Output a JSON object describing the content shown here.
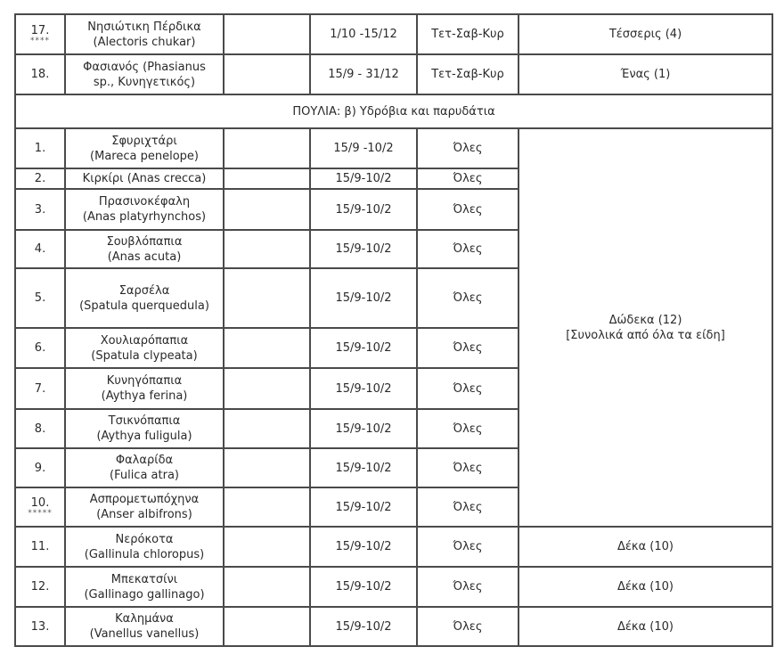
{
  "sections": {
    "top_rows": [
      {
        "num": "17.",
        "mark": "****",
        "name": "Νησιώτικη Πέρδικα",
        "latin": "(Alectoris chukar)",
        "period": "1/10 -15/12",
        "days": "Τετ-Σαβ-Κυρ",
        "quota": "Τέσσερις (4)"
      },
      {
        "num": "18.",
        "mark": "",
        "name": "Φασιανός (Phasianus",
        "latin": "sp., Κυνηγετικός)",
        "period": "15/9 - 31/12",
        "days": "Τετ-Σαβ-Κυρ",
        "quota": "Ένας (1)"
      }
    ],
    "waterfowl_header": "ΠΟΥΛΙΑ: β) Υδρόβια και παρυδάτια",
    "waterfowl_rows": [
      {
        "num": "1.",
        "mark": "",
        "name": "Σφυριχτάρι",
        "latin": "(Mareca penelope)",
        "period": "15/9 -10/2",
        "days": "Όλες"
      },
      {
        "num": "2.",
        "mark": "",
        "name": "Κιρκίρι (Anas crecca)",
        "latin": "",
        "period": "15/9-10/2",
        "days": "Όλες"
      },
      {
        "num": "3.",
        "mark": "",
        "name": "Πρασινοκέφαλη",
        "latin": "(Anas platyrhynchos)",
        "period": "15/9-10/2",
        "days": "Όλες"
      },
      {
        "num": "4.",
        "mark": "",
        "name": "Σουβλόπαπια",
        "latin": "(Anas acuta)",
        "period": "15/9-10/2",
        "days": "Όλες"
      },
      {
        "num": "5.",
        "mark": "",
        "name": "Σαρσέλα",
        "latin": "(Spatula querquedula)",
        "period": "15/9-10/2",
        "days": "Όλες"
      },
      {
        "num": "6.",
        "mark": "",
        "name": "Χουλιαρόπαπια",
        "latin": "(Spatula clypeata)",
        "period": "15/9-10/2",
        "days": "Όλες"
      },
      {
        "num": "7.",
        "mark": "",
        "name": "Κυνηγόπαπια",
        "latin": "(Aythya ferina)",
        "period": "15/9-10/2",
        "days": "Όλες"
      },
      {
        "num": "8.",
        "mark": "",
        "name": "Τσικνόπαπια",
        "latin": "(Aythya fuligula)",
        "period": "15/9-10/2",
        "days": "Όλες"
      },
      {
        "num": "9.",
        "mark": "",
        "name": "Φαλαρίδα",
        "latin": "(Fulica atra)",
        "period": "15/9-10/2",
        "days": "Όλες"
      },
      {
        "num": "10.",
        "mark": "*****",
        "name": "Ασπρομετωπόχηνα",
        "latin": "(Anser albifrons)",
        "period": "15/9-10/2",
        "days": "Όλες"
      },
      {
        "num": "11.",
        "mark": "",
        "name": "Νερόκοτα",
        "latin": "(Gallinula chloropus)",
        "period": "15/9-10/2",
        "days": "Όλες",
        "quota": "Δέκα (10)"
      },
      {
        "num": "12.",
        "mark": "",
        "name": "Μπεκατσίνι",
        "latin": "(Gallinago gallinago)",
        "period": "15/9-10/2",
        "days": "Όλες",
        "quota": "Δέκα (10)"
      },
      {
        "num": "13.",
        "mark": "",
        "name": "Καλημάνα",
        "latin": "(Vanellus vanellus)",
        "period": "15/9-10/2",
        "days": "Όλες",
        "quota": "Δέκα (10)"
      }
    ],
    "shared_quota": {
      "line1": "Δώδεκα (12)",
      "line2": "[Συνολικά από όλα τα είδη]"
    }
  }
}
